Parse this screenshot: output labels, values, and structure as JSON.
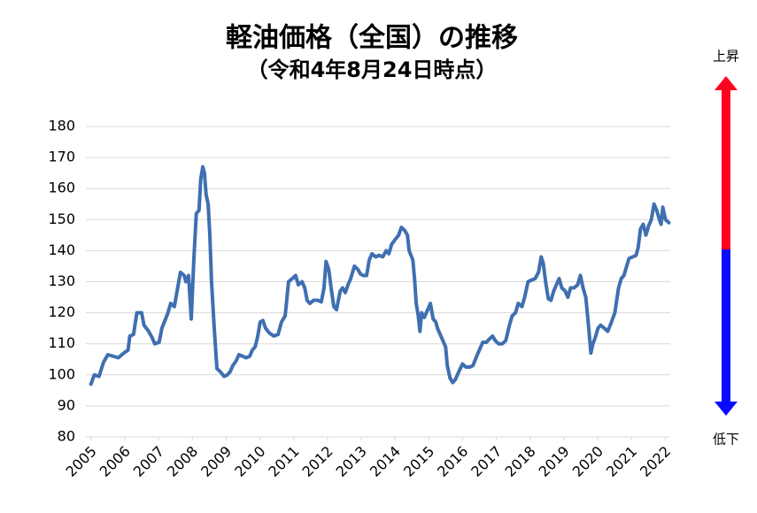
{
  "chart_data": {
    "type": "line",
    "title": "軽油価格（全国）の推移",
    "subtitle": "（令和4年8月24日時点）",
    "annotations": [
      "上昇",
      "低下"
    ],
    "color": "#3f6fb0",
    "grid": true,
    "xlim": [
      2004.85,
      2022.15
    ],
    "xticks": [
      2005,
      2006,
      2007,
      2008,
      2009,
      2010,
      2011,
      2012,
      2013,
      2014,
      2015,
      2016,
      2017,
      2018,
      2019,
      2020,
      2021,
      2022
    ],
    "ylim": [
      80,
      180
    ],
    "yticks": [
      80,
      90,
      100,
      110,
      120,
      130,
      140,
      150,
      160,
      170,
      180
    ],
    "x": [
      2005.0,
      2005.1,
      2005.24,
      2005.37,
      2005.5,
      2005.66,
      2005.81,
      2005.97,
      2006.1,
      2006.15,
      2006.26,
      2006.36,
      2006.5,
      2006.57,
      2006.71,
      2006.81,
      2006.89,
      2007.02,
      2007.1,
      2007.21,
      2007.28,
      2007.36,
      2007.47,
      2007.55,
      2007.65,
      2007.76,
      2007.81,
      2007.89,
      2007.97,
      2008.05,
      2008.12,
      2008.2,
      2008.25,
      2008.31,
      2008.36,
      2008.41,
      2008.47,
      2008.52,
      2008.57,
      2008.65,
      2008.73,
      2008.83,
      2008.94,
      2009.04,
      2009.12,
      2009.2,
      2009.3,
      2009.38,
      2009.49,
      2009.59,
      2009.7,
      2009.78,
      2009.86,
      2009.93,
      2010.01,
      2010.09,
      2010.17,
      2010.28,
      2010.41,
      2010.54,
      2010.64,
      2010.75,
      2010.85,
      2010.96,
      2011.06,
      2011.14,
      2011.25,
      2011.33,
      2011.4,
      2011.48,
      2011.59,
      2011.72,
      2011.82,
      2011.9,
      2011.96,
      2012.04,
      2012.11,
      2012.19,
      2012.27,
      2012.38,
      2012.45,
      2012.53,
      2012.61,
      2012.69,
      2012.8,
      2012.9,
      2012.98,
      2013.06,
      2013.16,
      2013.24,
      2013.32,
      2013.43,
      2013.53,
      2013.64,
      2013.74,
      2013.82,
      2013.9,
      2014.0,
      2014.11,
      2014.19,
      2014.29,
      2014.37,
      2014.42,
      2014.53,
      2014.58,
      2014.63,
      2014.69,
      2014.74,
      2014.79,
      2014.87,
      2014.97,
      2015.05,
      2015.13,
      2015.21,
      2015.26,
      2015.34,
      2015.42,
      2015.5,
      2015.55,
      2015.63,
      2015.71,
      2015.79,
      2015.89,
      2016.0,
      2016.1,
      2016.21,
      2016.31,
      2016.42,
      2016.5,
      2016.6,
      2016.71,
      2016.79,
      2016.89,
      2016.97,
      2017.07,
      2017.18,
      2017.28,
      2017.39,
      2017.47,
      2017.57,
      2017.65,
      2017.76,
      2017.84,
      2017.94,
      2018.04,
      2018.15,
      2018.25,
      2018.33,
      2018.39,
      2018.46,
      2018.54,
      2018.62,
      2018.7,
      2018.78,
      2018.86,
      2018.94,
      2019.04,
      2019.12,
      2019.2,
      2019.3,
      2019.41,
      2019.49,
      2019.57,
      2019.65,
      2019.73,
      2019.8,
      2019.86,
      2019.93,
      2020.01,
      2020.09,
      2020.2,
      2020.3,
      2020.41,
      2020.51,
      2020.62,
      2020.7,
      2020.78,
      2020.86,
      2020.93,
      2021.04,
      2021.14,
      2021.2,
      2021.27,
      2021.35,
      2021.43,
      2021.51,
      2021.59,
      2021.67,
      2021.75,
      2021.83,
      2021.88,
      2021.93,
      2022.01,
      2022.11
    ],
    "values": [
      97,
      100,
      99.5,
      104,
      106.5,
      106,
      105.5,
      107,
      108,
      112.5,
      113,
      120,
      120,
      116,
      114,
      112,
      110,
      110.5,
      115,
      118,
      120,
      123,
      122,
      127,
      133,
      132,
      130,
      132,
      118,
      138,
      152,
      153,
      163,
      167,
      165,
      158,
      155,
      145,
      130,
      115,
      102,
      101,
      99.5,
      100,
      101,
      103,
      104.5,
      106.5,
      106,
      105.5,
      106,
      108,
      109,
      112,
      117,
      117.5,
      115,
      113.5,
      112.5,
      113,
      117,
      119,
      130,
      131,
      132,
      129,
      130,
      128,
      124,
      123,
      124,
      124,
      123.5,
      128,
      136.5,
      134,
      128,
      122,
      121,
      127,
      128,
      126.5,
      129,
      131,
      135,
      134,
      132.5,
      132,
      132,
      137,
      139,
      138,
      138.5,
      138,
      140,
      139,
      142,
      143.5,
      145,
      147.5,
      146.5,
      145,
      140,
      137,
      131,
      123,
      119,
      114,
      120,
      118.5,
      121,
      123,
      118,
      117,
      115,
      113,
      111,
      109,
      103,
      99,
      97.5,
      98.5,
      101,
      103.5,
      102.5,
      102.5,
      103,
      106,
      108,
      110.5,
      110.5,
      111.5,
      112.5,
      111,
      110,
      110,
      111,
      116,
      119,
      120,
      123,
      122,
      125,
      130,
      130.5,
      131,
      133,
      138,
      136,
      130,
      124.5,
      124,
      127,
      129,
      131,
      128,
      127,
      125,
      128,
      128,
      129,
      132,
      128,
      125,
      116,
      107,
      110,
      112,
      115,
      116,
      115,
      114,
      117,
      120,
      128,
      131,
      132,
      135,
      137.5,
      138,
      138.5,
      141,
      147,
      148.5,
      145,
      148,
      150,
      155,
      153,
      150,
      148.5,
      154,
      150,
      149
    ]
  }
}
